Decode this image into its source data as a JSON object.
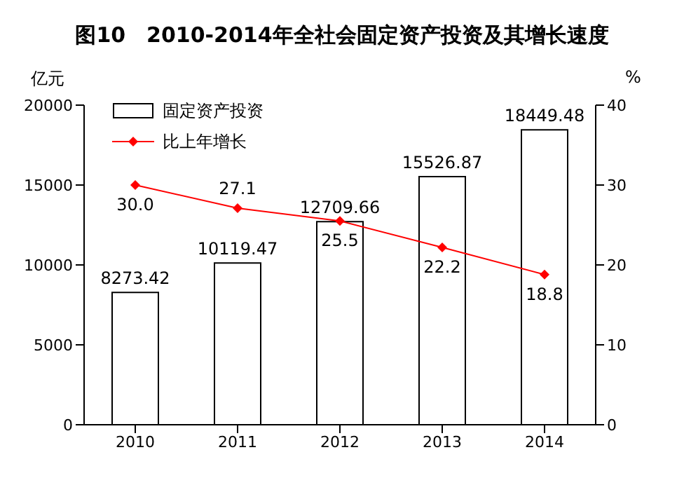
{
  "chart_data": {
    "type": "bar",
    "title": "图10　2010-2014年全社会固定资产投资及其增长速度",
    "ylabel": "亿元",
    "y2label": "%",
    "categories": [
      "2010",
      "2011",
      "2012",
      "2013",
      "2014"
    ],
    "series": [
      {
        "name": "固定资产投资",
        "color": "#ffffff",
        "values": [
          8273.42,
          10119.47,
          12709.66,
          15526.87,
          18449.48
        ],
        "value_labels": [
          "8273.42",
          "10119.47",
          "12709.66",
          "15526.87",
          "18449.48"
        ]
      },
      {
        "name": "比上年增长",
        "type": "line",
        "axis": "y2",
        "color": "#ff0000",
        "marker": "diamond",
        "values": [
          30.0,
          27.1,
          25.5,
          22.2,
          18.8
        ],
        "value_labels": [
          "30.0",
          "27.1",
          "25.5",
          "22.2",
          "18.8"
        ]
      }
    ],
    "ylim": [
      0,
      20000
    ],
    "yticks": [
      0,
      5000,
      10000,
      15000,
      20000
    ],
    "y2lim": [
      0,
      40
    ],
    "y2ticks": [
      0,
      10,
      20,
      30,
      40
    ],
    "grid": false,
    "legend": "top left"
  }
}
